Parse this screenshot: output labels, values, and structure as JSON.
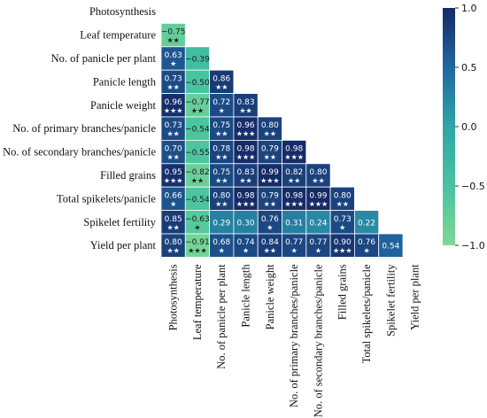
{
  "chart_data": {
    "type": "heatmap",
    "title": "",
    "variables": [
      "Photosynthesis",
      "Leaf temperature",
      "No. of panicle per plant",
      "Panicle length",
      "Panicle weight",
      "No. of primary branches/panicle",
      "No. of secondary branches/panicle",
      "Filled grains",
      "Total spikelets/panicle",
      "Spikelet fertility",
      "Yield per plant"
    ],
    "matrix": [
      [],
      [
        -0.75
      ],
      [
        0.63,
        -0.39
      ],
      [
        0.73,
        -0.5,
        0.86
      ],
      [
        0.96,
        -0.77,
        0.72,
        0.83
      ],
      [
        0.73,
        -0.54,
        0.75,
        0.96,
        0.8
      ],
      [
        0.7,
        -0.55,
        0.78,
        0.98,
        0.79,
        0.98
      ],
      [
        0.95,
        -0.82,
        0.75,
        0.83,
        0.99,
        0.82,
        0.8
      ],
      [
        0.66,
        -0.54,
        0.8,
        0.98,
        0.79,
        0.98,
        0.99,
        0.8
      ],
      [
        0.85,
        -0.63,
        0.29,
        0.3,
        0.76,
        0.31,
        0.24,
        0.73,
        0.22
      ],
      [
        0.8,
        -0.91,
        0.68,
        0.74,
        0.84,
        0.77,
        0.77,
        0.9,
        0.76,
        0.54
      ]
    ],
    "value_labels": [
      [],
      [
        "−0.75"
      ],
      [
        "0.63",
        "−0.39"
      ],
      [
        "0.73",
        "−0.50",
        "0.86"
      ],
      [
        "0.96",
        "−0.77",
        "0.72",
        "0.83"
      ],
      [
        "0.73",
        "−0.54",
        "0.75",
        "0.96",
        "0.80"
      ],
      [
        "0.70",
        "−0.55",
        "0.78",
        "0.98",
        "0.79",
        "0.98"
      ],
      [
        "0.95",
        "−0.82",
        "0.75",
        "0.83",
        "0.99",
        "0.82",
        "0.80"
      ],
      [
        "0.66",
        "−0.54",
        "0.80",
        "0.98",
        "0.79",
        "0.98",
        "0.99",
        "0.80"
      ],
      [
        "0.85",
        "−0.63",
        "0.29",
        "0.30",
        "0.76",
        "0.31",
        "0.24",
        "0.73",
        "0.22"
      ],
      [
        "0.80",
        "−0.91",
        "0.68",
        "0.74",
        "0.84",
        "0.77",
        "0.77",
        "0.90",
        "0.76",
        "0.54"
      ]
    ],
    "significance": [
      [],
      [
        "★★"
      ],
      [
        "★",
        ""
      ],
      [
        "★★",
        "",
        "★★"
      ],
      [
        "★★★",
        "★★",
        "★",
        "★★"
      ],
      [
        "★★",
        "",
        "★★",
        "★★★",
        "★★"
      ],
      [
        "★★",
        "",
        "★★",
        "★★★",
        "★★",
        "★★★"
      ],
      [
        "★★★",
        "★★",
        "★★",
        "★★",
        "★★★",
        "★★",
        "★★"
      ],
      [
        "★",
        "",
        "★★",
        "★★★",
        "★★",
        "★★★",
        "★★★",
        "★★"
      ],
      [
        "★★",
        "★",
        "",
        "",
        "★",
        "",
        "",
        "★",
        ""
      ],
      [
        "★★",
        "★★★",
        "★",
        "★",
        "★★",
        "★",
        "★",
        "★★★",
        "★",
        ""
      ]
    ],
    "colorbar": {
      "min": -1.0,
      "max": 1.0,
      "ticks": [
        1.0,
        0.5,
        0.0,
        -0.5,
        -1.0
      ],
      "tick_labels": [
        "1.0",
        "0.5",
        "0.0",
        "−0.5",
        "−1.0"
      ],
      "colormap": "YlGnBu-teal",
      "color_low": "#7ed894",
      "color_mid": "#2ea6a6",
      "color_high": "#152a66"
    },
    "legend_position": "right",
    "grid": false
  }
}
